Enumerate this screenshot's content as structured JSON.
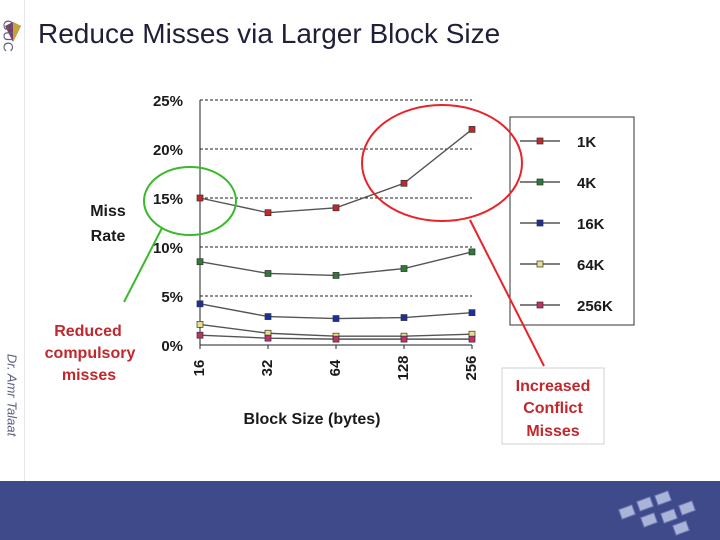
{
  "slide": {
    "title": "Reduce Misses via Larger Block Size",
    "logo_text": "GUC",
    "author": "Dr. Amr Talaat"
  },
  "chart_data": {
    "type": "line",
    "ylabel_line1": "Miss",
    "ylabel_line2": "Rate",
    "xlabel": "Block Size (bytes)",
    "categories": [
      "16",
      "32",
      "64",
      "128",
      "256"
    ],
    "yticks": [
      "0%",
      "5%",
      "10%",
      "15%",
      "20%",
      "25%"
    ],
    "ylim": [
      0,
      25
    ],
    "grid": "horizontal dashed",
    "legend_position": "right",
    "series": [
      {
        "name": "1K",
        "color": "#c0282d",
        "values": [
          15,
          13.5,
          14,
          16.5,
          22
        ]
      },
      {
        "name": "4K",
        "color": "#2e7a3a",
        "values": [
          8.5,
          7.3,
          7.1,
          7.8,
          9.5
        ]
      },
      {
        "name": "16K",
        "color": "#1c2fa0",
        "values": [
          4.2,
          2.9,
          2.7,
          2.8,
          3.3
        ]
      },
      {
        "name": "64K",
        "color": "#e8e08a",
        "values": [
          2.1,
          1.2,
          0.9,
          0.9,
          1.1
        ]
      },
      {
        "name": "256K",
        "color": "#c0306a",
        "values": [
          1.0,
          0.7,
          0.6,
          0.6,
          0.6
        ]
      }
    ],
    "annotations": {
      "reduced": [
        "Reduced",
        "compulsory",
        "misses"
      ],
      "increased": [
        "Increased",
        "Conflict",
        "Misses"
      ]
    }
  }
}
